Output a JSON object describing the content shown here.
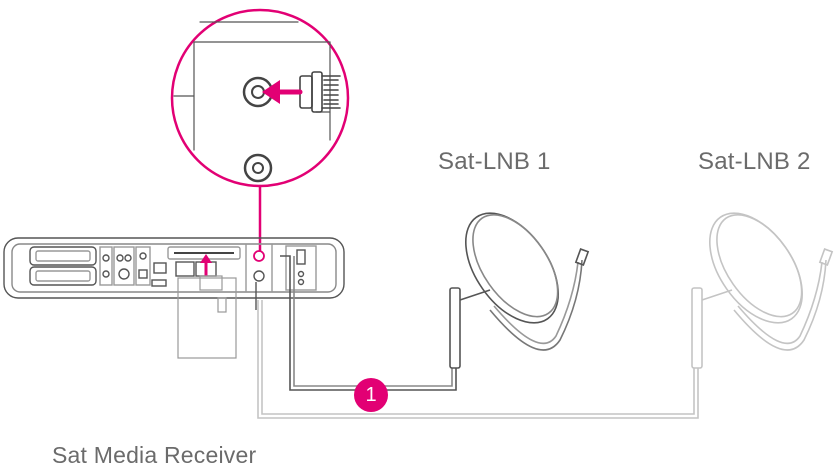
{
  "labels": {
    "lnb1": "Sat-LNB 1",
    "lnb2": "Sat-LNB 2",
    "receiver": "Sat Media Receiver"
  },
  "marker": {
    "number": "1"
  },
  "colors": {
    "accent": "#e20074",
    "line": "#555555",
    "faded": "#bdbdbd",
    "text": "#6b6b6b"
  },
  "icons": [
    "receiver-device",
    "coax-connector",
    "satellite-dish",
    "insert-arrow"
  ]
}
